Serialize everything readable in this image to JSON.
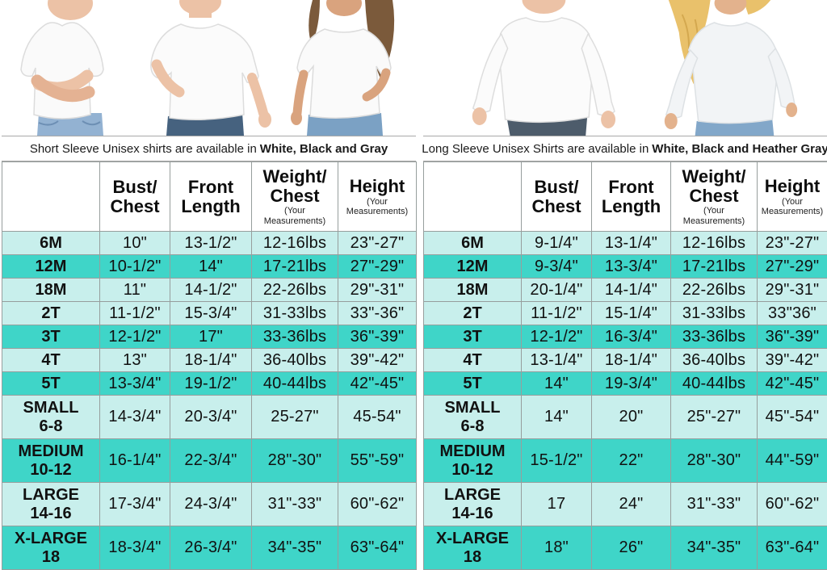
{
  "colors": {
    "row_light": "#c8efec",
    "row_dark": "#3fd5c8",
    "table_border": "#979e9d",
    "text": "#111111"
  },
  "panels": [
    {
      "key": "short-sleeve",
      "photo_description": "three-kids-wearing-white-short-sleeve-tshirts",
      "caption": {
        "text": "Short Sleeve Unisex shirts are available in",
        "bold": "White, Black and Gray"
      },
      "columns": [
        {
          "key": "size",
          "lines": [],
          "sub": ""
        },
        {
          "key": "bust-chest",
          "lines": [
            "Bust/",
            "Chest"
          ],
          "sub": ""
        },
        {
          "key": "front-length",
          "lines": [
            "Front",
            "Length"
          ],
          "sub": ""
        },
        {
          "key": "weight-chest",
          "lines": [
            "Weight/",
            "Chest"
          ],
          "sub": "(Your Measurements)"
        },
        {
          "key": "height",
          "lines": [
            "Height"
          ],
          "sub": "(Your Measurements)"
        }
      ],
      "rows": [
        {
          "size": [
            "6M"
          ],
          "shade": "light",
          "cells": [
            "10\"",
            "13-1/2\"",
            "12-16lbs",
            "23\"-27\""
          ]
        },
        {
          "size": [
            "12M"
          ],
          "shade": "dark",
          "cells": [
            "10-1/2\"",
            "14\"",
            "17-21lbs",
            "27\"-29\""
          ]
        },
        {
          "size": [
            "18M"
          ],
          "shade": "light",
          "cells": [
            "11\"",
            "14-1/2\"",
            "22-26lbs",
            "29\"-31\""
          ]
        },
        {
          "size": [
            "2T"
          ],
          "shade": "light",
          "cells": [
            "11-1/2\"",
            "15-3/4\"",
            "31-33lbs",
            "33\"-36\""
          ]
        },
        {
          "size": [
            "3T"
          ],
          "shade": "dark",
          "cells": [
            "12-1/2\"",
            "17\"",
            "33-36lbs",
            "36\"-39\""
          ]
        },
        {
          "size": [
            "4T"
          ],
          "shade": "light",
          "cells": [
            "13\"",
            "18-1/4\"",
            "36-40lbs",
            "39\"-42\""
          ]
        },
        {
          "size": [
            "5T"
          ],
          "shade": "dark",
          "cells": [
            "13-3/4\"",
            "19-1/2\"",
            "40-44lbs",
            "42\"-45\""
          ]
        },
        {
          "size": [
            "SMALL",
            "6-8"
          ],
          "shade": "light",
          "cells": [
            "14-3/4\"",
            "20-3/4\"",
            "25-27\"",
            "45-54\""
          ]
        },
        {
          "size": [
            "MEDIUM",
            "10-12"
          ],
          "shade": "dark",
          "cells": [
            "16-1/4\"",
            "22-3/4\"",
            "28\"-30\"",
            "55\"-59\""
          ]
        },
        {
          "size": [
            "LARGE",
            "14-16"
          ],
          "shade": "light",
          "cells": [
            "17-3/4\"",
            "24-3/4\"",
            "31\"-33\"",
            "60\"-62\""
          ]
        },
        {
          "size": [
            "X-LARGE",
            "18"
          ],
          "shade": "dark",
          "cells": [
            "18-3/4\"",
            "26-3/4\"",
            "34\"-35\"",
            "63\"-64\""
          ]
        }
      ]
    },
    {
      "key": "long-sleeve",
      "photo_description": "two-kids-wearing-white-long-sleeve-shirts",
      "caption": {
        "text": "Long Sleeve Unisex Shirts are available in",
        "bold": "White, Black and Heather Gray"
      },
      "columns": [
        {
          "key": "size",
          "lines": [],
          "sub": ""
        },
        {
          "key": "bust-chest",
          "lines": [
            "Bust/",
            "Chest"
          ],
          "sub": ""
        },
        {
          "key": "front-length",
          "lines": [
            "Front",
            "Length"
          ],
          "sub": ""
        },
        {
          "key": "weight-chest",
          "lines": [
            "Weight/",
            "Chest"
          ],
          "sub": "(Your Measurements)"
        },
        {
          "key": "height",
          "lines": [
            "Height"
          ],
          "sub": "(Your Measurements)"
        }
      ],
      "rows": [
        {
          "size": [
            "6M"
          ],
          "shade": "light",
          "cells": [
            "9-1/4\"",
            "13-1/4\"",
            "12-16lbs",
            "23\"-27\""
          ]
        },
        {
          "size": [
            "12M"
          ],
          "shade": "dark",
          "cells": [
            "9-3/4\"",
            "13-3/4\"",
            "17-21lbs",
            "27\"-29\""
          ]
        },
        {
          "size": [
            "18M"
          ],
          "shade": "light",
          "cells": [
            "20-1/4\"",
            "14-1/4\"",
            "22-26lbs",
            "29\"-31\""
          ]
        },
        {
          "size": [
            "2T"
          ],
          "shade": "light",
          "cells": [
            "11-1/2\"",
            "15-1/4\"",
            "31-33lbs",
            "33\"36\""
          ]
        },
        {
          "size": [
            "3T"
          ],
          "shade": "dark",
          "cells": [
            "12-1/2\"",
            "16-3/4\"",
            "33-36lbs",
            "36\"-39\""
          ]
        },
        {
          "size": [
            "4T"
          ],
          "shade": "light",
          "cells": [
            "13-1/4\"",
            "18-1/4\"",
            "36-40lbs",
            "39\"-42\""
          ]
        },
        {
          "size": [
            "5T"
          ],
          "shade": "dark",
          "cells": [
            "14\"",
            "19-3/4\"",
            "40-44lbs",
            "42\"-45\""
          ]
        },
        {
          "size": [
            "SMALL",
            "6-8"
          ],
          "shade": "light",
          "cells": [
            "14\"",
            "20\"",
            "25\"-27\"",
            "45\"-54\""
          ]
        },
        {
          "size": [
            "MEDIUM",
            "10-12"
          ],
          "shade": "dark",
          "cells": [
            "15-1/2\"",
            "22\"",
            "28\"-30\"",
            "44\"-59\""
          ]
        },
        {
          "size": [
            "LARGE",
            "14-16"
          ],
          "shade": "light",
          "cells": [
            "17",
            "24\"",
            "31\"-33\"",
            "60\"-62\""
          ]
        },
        {
          "size": [
            "X-LARGE",
            "18"
          ],
          "shade": "dark",
          "cells": [
            "18\"",
            "26\"",
            "34\"-35\"",
            "63\"-64\""
          ]
        }
      ]
    }
  ]
}
